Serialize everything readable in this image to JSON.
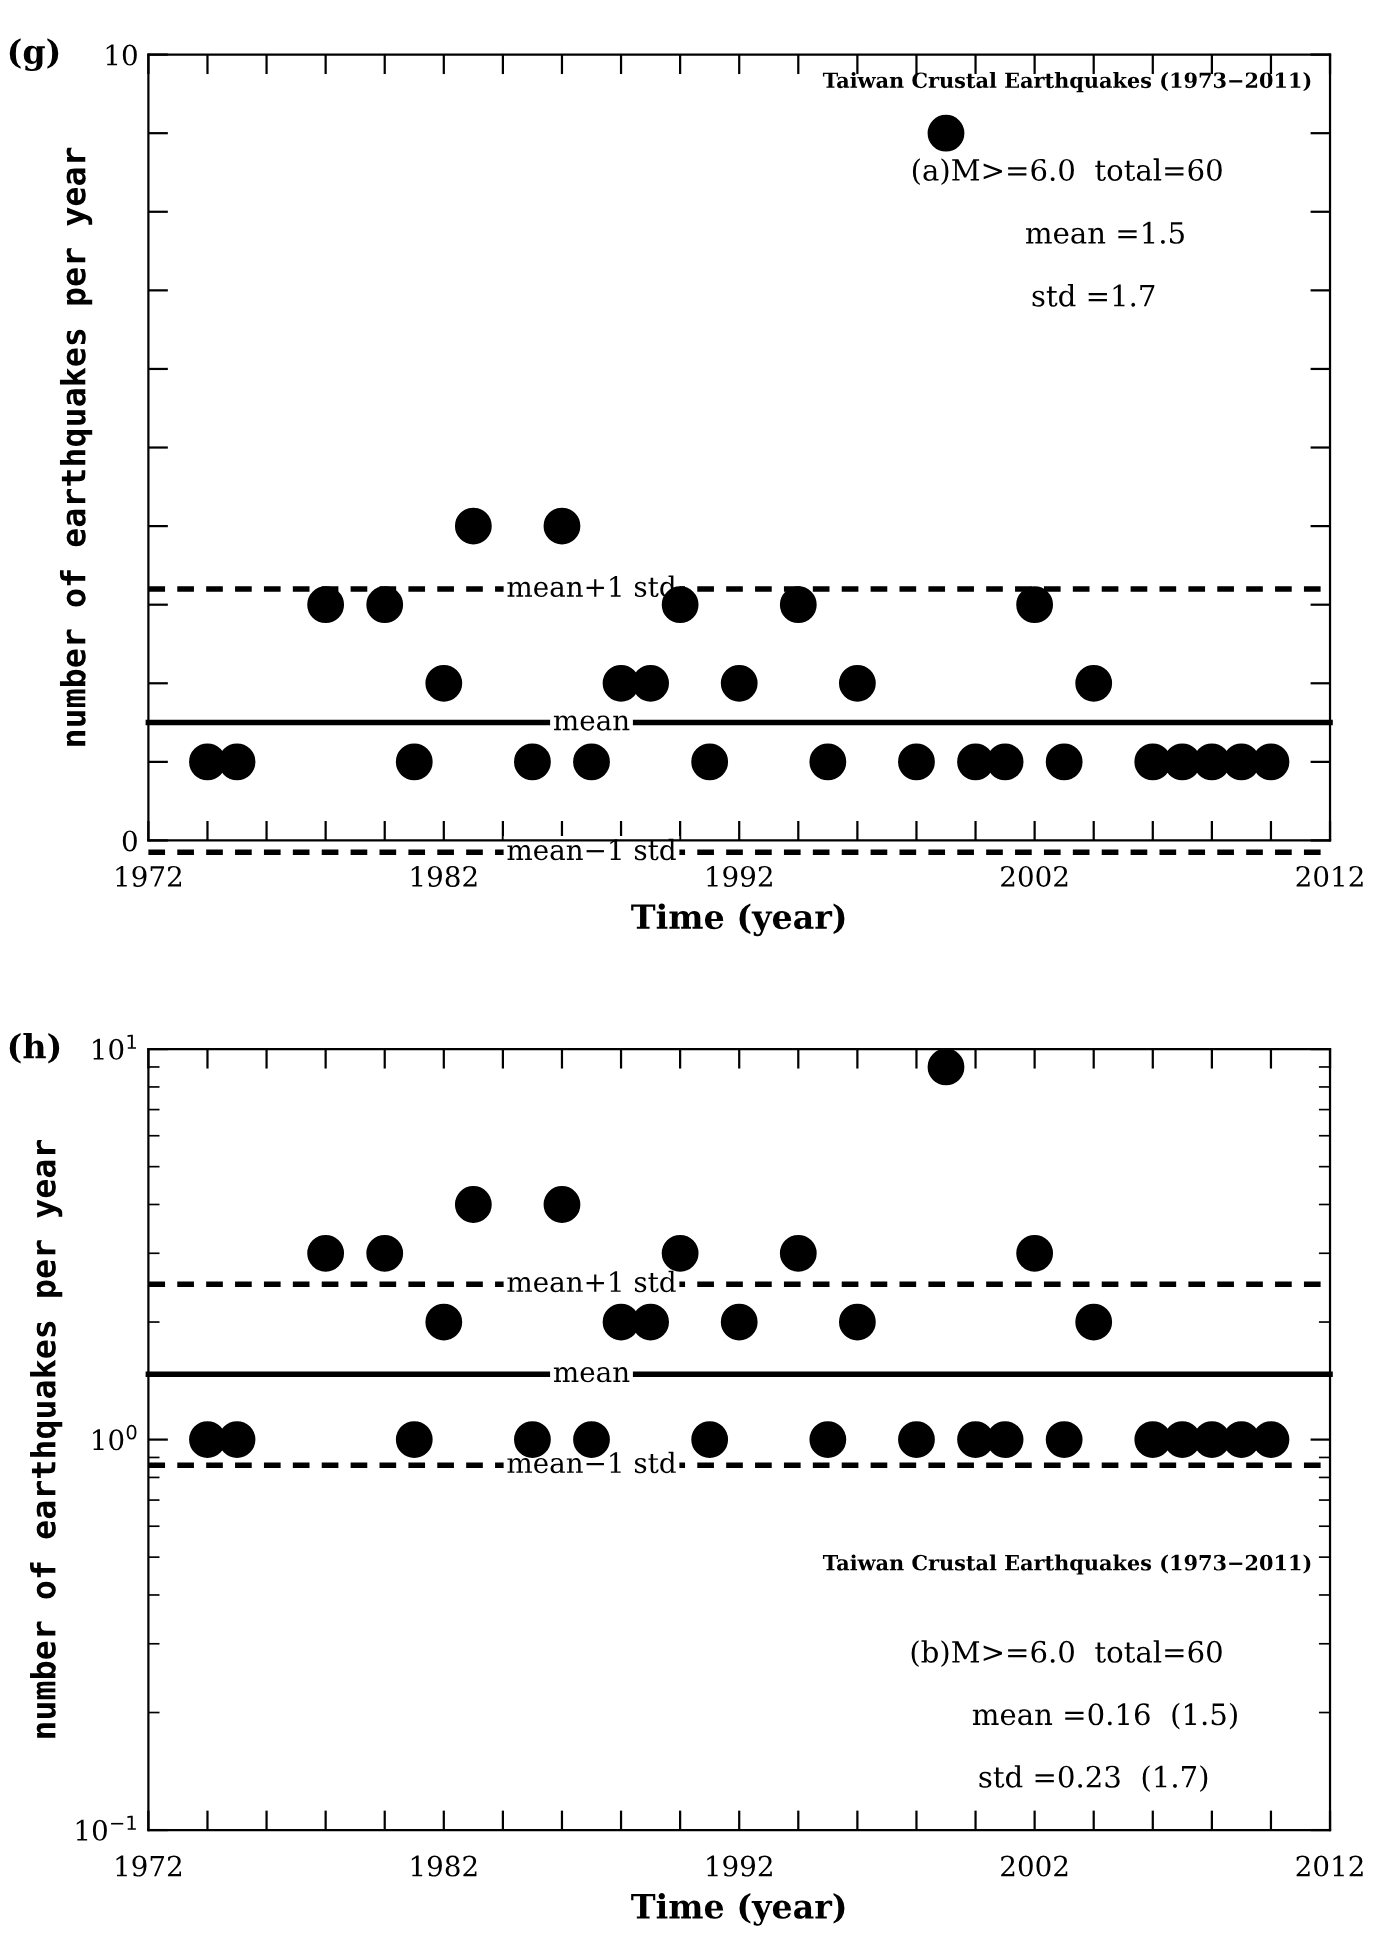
{
  "chart_data": [
    {
      "type": "scatter",
      "title": "(g)",
      "xlabel": "Time (year)",
      "ylabel": "number of earthquakes per year",
      "x": [
        1974,
        1975,
        1978,
        1980,
        1981,
        1982,
        1983,
        1985,
        1986,
        1987,
        1988,
        1989,
        1990,
        1991,
        1992,
        1994,
        1995,
        1996,
        1998,
        1999,
        2000,
        2001,
        2002,
        2003,
        2004,
        2006,
        2007,
        2008,
        2009,
        2010
      ],
      "series": [
        {
          "color": "#000000",
          "values": [
            1,
            1,
            3,
            3,
            1,
            2,
            4,
            1,
            4,
            1,
            2,
            2,
            3,
            1,
            2,
            3,
            1,
            2,
            1,
            9,
            1,
            1,
            3,
            1,
            2,
            1,
            1,
            1,
            1,
            1
          ]
        }
      ],
      "marker": "circle",
      "xlim": [
        1972,
        2012
      ],
      "xticks": [
        1972,
        {
          "value": 1974,
          "label": null
        },
        {
          "value": 1976,
          "label": null
        },
        {
          "value": 1978,
          "label": null
        },
        {
          "value": 1980,
          "label": null
        },
        1982,
        {
          "value": 1984,
          "label": null
        },
        {
          "value": 1986,
          "label": null
        },
        {
          "value": 1988,
          "label": null
        },
        {
          "value": 1990,
          "label": null
        },
        1992,
        {
          "value": 1994,
          "label": null
        },
        {
          "value": 1996,
          "label": null
        },
        {
          "value": 1998,
          "label": null
        },
        {
          "value": 2000,
          "label": null
        },
        2002,
        {
          "value": 2004,
          "label": null
        },
        {
          "value": 2006,
          "label": null
        },
        {
          "value": 2008,
          "label": null
        },
        {
          "value": 2010,
          "label": null
        },
        2012
      ],
      "ylim": [
        0,
        10
      ],
      "yticks": [
        0,
        {
          "value": 1,
          "label": null
        },
        {
          "value": 2,
          "label": null
        },
        {
          "value": 3,
          "label": null
        },
        {
          "value": 4,
          "label": null
        },
        {
          "value": 5,
          "label": null
        },
        {
          "value": 6,
          "label": null
        },
        {
          "value": 7,
          "label": null
        },
        {
          "value": 8,
          "label": null
        },
        {
          "value": 9,
          "label": null
        },
        10
      ],
      "ref_lines": [
        {
          "axis": "y",
          "value": 3.2,
          "label": "mean+1 std",
          "line_style": "dashed",
          "color": "#000000"
        },
        {
          "axis": "y",
          "value": 1.5,
          "label": "mean",
          "line_style": "solid",
          "color": "#000000"
        },
        {
          "axis": "y",
          "value": -0.15,
          "label": "mean−1 std",
          "line_style": "dashed",
          "color": "#000000"
        }
      ],
      "annotations": [
        "Taiwan Crustal Earthquakes (1973−2011)",
        "(a)M>=6.0  total=60",
        "mean =1.5",
        "std =1.7"
      ],
      "grid": false,
      "legend": false
    },
    {
      "type": "scatter",
      "title": "(h)",
      "xlabel": "Time (year)",
      "ylabel": "number of earthquakes per year",
      "x": [
        1974,
        1975,
        1978,
        1980,
        1981,
        1982,
        1983,
        1985,
        1986,
        1987,
        1988,
        1989,
        1990,
        1991,
        1992,
        1994,
        1995,
        1996,
        1998,
        1999,
        2000,
        2001,
        2002,
        2003,
        2004,
        2006,
        2007,
        2008,
        2009,
        2010
      ],
      "series": [
        {
          "color": "#000000",
          "values": [
            1,
            1,
            3,
            3,
            1,
            2,
            4,
            1,
            4,
            1,
            2,
            2,
            3,
            1,
            2,
            3,
            1,
            2,
            1,
            9,
            1,
            1,
            3,
            1,
            2,
            1,
            1,
            1,
            1,
            1
          ]
        }
      ],
      "marker": "circle",
      "log": "y",
      "xlim": [
        1972,
        2012
      ],
      "xticks": [
        1972,
        {
          "value": 1974,
          "label": null
        },
        {
          "value": 1976,
          "label": null
        },
        {
          "value": 1978,
          "label": null
        },
        {
          "value": 1980,
          "label": null
        },
        1982,
        {
          "value": 1984,
          "label": null
        },
        {
          "value": 1986,
          "label": null
        },
        {
          "value": 1988,
          "label": null
        },
        {
          "value": 1990,
          "label": null
        },
        1992,
        {
          "value": 1994,
          "label": null
        },
        {
          "value": 1996,
          "label": null
        },
        {
          "value": 1998,
          "label": null
        },
        {
          "value": 2000,
          "label": null
        },
        2002,
        {
          "value": 2004,
          "label": null
        },
        {
          "value": 2006,
          "label": null
        },
        {
          "value": 2008,
          "label": null
        },
        {
          "value": 2010,
          "label": null
        },
        2012
      ],
      "ylim": [
        0.1,
        10
      ],
      "yticks": [
        {
          "value": 0.1,
          "label": "10$^{−1}$"
        },
        {
          "value": 1,
          "label": "10$^{0}$"
        },
        {
          "value": 10,
          "label": "10$^{1}$"
        }
      ],
      "ref_lines": [
        {
          "axis": "y",
          "value": 2.5,
          "label": "mean+1 std",
          "line_style": "dashed",
          "color": "#000000"
        },
        {
          "axis": "y",
          "value": 1.47,
          "label": "mean",
          "line_style": "solid",
          "color": "#000000"
        },
        {
          "axis": "y",
          "value": 0.86,
          "label": "mean−1 std",
          "line_style": "dashed",
          "color": "#000000"
        }
      ],
      "annotations": [
        "Taiwan Crustal Earthquakes (1973−2011)",
        "(b)M>=6.0  total=60",
        "mean =0.16  (1.5)",
        "std =0.23  (1.7)"
      ],
      "grid": false,
      "legend": false
    }
  ]
}
